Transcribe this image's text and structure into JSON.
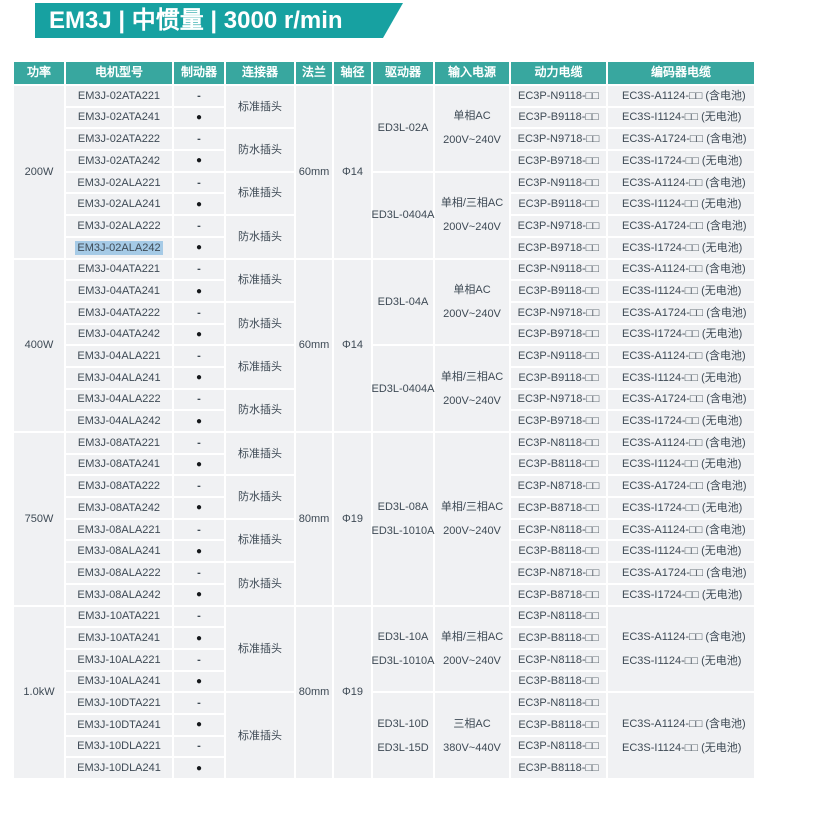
{
  "banner": {
    "title": "EM3J | 中惯量 | 3000 r/min"
  },
  "colors": {
    "banner_teal": "#17a1a1",
    "header_teal": "#38a79f",
    "cell_background": "#f0f1f3",
    "selection_highlight": "#a5cae6",
    "text": "#3e4a55"
  },
  "table": {
    "headers": [
      "功率",
      "电机型号",
      "制动器",
      "连接器",
      "法兰",
      "轴径",
      "驱动器",
      "输入电源",
      "动力电缆",
      "编码器电缆"
    ],
    "sections": [
      {
        "power": "200W",
        "flange": "60mm",
        "shaft": "Φ14",
        "connectors": [
          {
            "label": "标准插头",
            "span": 2
          },
          {
            "label": "防水插头",
            "span": 2
          },
          {
            "label": "标准插头",
            "span": 2
          },
          {
            "label": "防水插头",
            "span": 2
          }
        ],
        "drivers": [
          {
            "lines": [
              "ED3L-02A"
            ],
            "span": 4
          },
          {
            "lines": [
              "ED3L-0404A"
            ],
            "span": 4
          }
        ],
        "inputs": [
          {
            "lines": [
              "单相AC",
              "200V~240V"
            ],
            "span": 4
          },
          {
            "lines": [
              "单相/三相AC",
              "200V~240V"
            ],
            "span": 4
          }
        ],
        "rows": [
          {
            "model": "EM3J-02ATA221",
            "brake": "-",
            "power_cable": "EC3P-N9118-□□",
            "encoder_cable": "EC3S-A1124-□□ (含电池)"
          },
          {
            "model": "EM3J-02ATA241",
            "brake": "●",
            "power_cable": "EC3P-B9118-□□",
            "encoder_cable": "EC3S-I1124-□□ (无电池)"
          },
          {
            "model": "EM3J-02ATA222",
            "brake": "-",
            "power_cable": "EC3P-N9718-□□",
            "encoder_cable": "EC3S-A1724-□□ (含电池)"
          },
          {
            "model": "EM3J-02ATA242",
            "brake": "●",
            "power_cable": "EC3P-B9718-□□",
            "encoder_cable": "EC3S-I1724-□□ (无电池)"
          },
          {
            "model": "EM3J-02ALA221",
            "brake": "-",
            "power_cable": "EC3P-N9118-□□",
            "encoder_cable": "EC3S-A1124-□□ (含电池)"
          },
          {
            "model": "EM3J-02ALA241",
            "brake": "●",
            "power_cable": "EC3P-B9118-□□",
            "encoder_cable": "EC3S-I1124-□□ (无电池)"
          },
          {
            "model": "EM3J-02ALA222",
            "brake": "-",
            "power_cable": "EC3P-N9718-□□",
            "encoder_cable": "EC3S-A1724-□□ (含电池)"
          },
          {
            "model": "EM3J-02ALA242",
            "brake": "●",
            "highlight": true,
            "power_cable": "EC3P-B9718-□□",
            "encoder_cable": "EC3S-I1724-□□ (无电池)"
          }
        ]
      },
      {
        "power": "400W",
        "flange": "60mm",
        "shaft": "Φ14",
        "connectors": [
          {
            "label": "标准插头",
            "span": 2
          },
          {
            "label": "防水插头",
            "span": 2
          },
          {
            "label": "标准插头",
            "span": 2
          },
          {
            "label": "防水插头",
            "span": 2
          }
        ],
        "drivers": [
          {
            "lines": [
              "ED3L-04A"
            ],
            "span": 4
          },
          {
            "lines": [
              "ED3L-0404A"
            ],
            "span": 4
          }
        ],
        "inputs": [
          {
            "lines": [
              "单相AC",
              "200V~240V"
            ],
            "span": 4
          },
          {
            "lines": [
              "单相/三相AC",
              "200V~240V"
            ],
            "span": 4
          }
        ],
        "rows": [
          {
            "model": "EM3J-04ATA221",
            "brake": "-",
            "power_cable": "EC3P-N9118-□□",
            "encoder_cable": "EC3S-A1124-□□ (含电池)"
          },
          {
            "model": "EM3J-04ATA241",
            "brake": "●",
            "power_cable": "EC3P-B9118-□□",
            "encoder_cable": "EC3S-I1124-□□ (无电池)"
          },
          {
            "model": "EM3J-04ATA222",
            "brake": "-",
            "power_cable": "EC3P-N9718-□□",
            "encoder_cable": "EC3S-A1724-□□ (含电池)"
          },
          {
            "model": "EM3J-04ATA242",
            "brake": "●",
            "power_cable": "EC3P-B9718-□□",
            "encoder_cable": "EC3S-I1724-□□ (无电池)"
          },
          {
            "model": "EM3J-04ALA221",
            "brake": "-",
            "power_cable": "EC3P-N9118-□□",
            "encoder_cable": "EC3S-A1124-□□ (含电池)"
          },
          {
            "model": "EM3J-04ALA241",
            "brake": "●",
            "power_cable": "EC3P-B9118-□□",
            "encoder_cable": "EC3S-I1124-□□ (无电池)"
          },
          {
            "model": "EM3J-04ALA222",
            "brake": "-",
            "power_cable": "EC3P-N9718-□□",
            "encoder_cable": "EC3S-A1724-□□ (含电池)"
          },
          {
            "model": "EM3J-04ALA242",
            "brake": "●",
            "power_cable": "EC3P-B9718-□□",
            "encoder_cable": "EC3S-I1724-□□ (无电池)"
          }
        ]
      },
      {
        "power": "750W",
        "flange": "80mm",
        "shaft": "Φ19",
        "connectors": [
          {
            "label": "标准插头",
            "span": 2
          },
          {
            "label": "防水插头",
            "span": 2
          },
          {
            "label": "标准插头",
            "span": 2
          },
          {
            "label": "防水插头",
            "span": 2
          }
        ],
        "drivers": [
          {
            "lines": [
              "ED3L-08A",
              "ED3L-1010A"
            ],
            "span": 8
          }
        ],
        "inputs": [
          {
            "lines": [
              "单相/三相AC",
              "200V~240V"
            ],
            "span": 8
          }
        ],
        "rows": [
          {
            "model": "EM3J-08ATA221",
            "brake": "-",
            "power_cable": "EC3P-N8118-□□",
            "encoder_cable": "EC3S-A1124-□□ (含电池)"
          },
          {
            "model": "EM3J-08ATA241",
            "brake": "●",
            "power_cable": "EC3P-B8118-□□",
            "encoder_cable": "EC3S-I1124-□□ (无电池)"
          },
          {
            "model": "EM3J-08ATA222",
            "brake": "-",
            "power_cable": "EC3P-N8718-□□",
            "encoder_cable": "EC3S-A1724-□□ (含电池)"
          },
          {
            "model": "EM3J-08ATA242",
            "brake": "●",
            "power_cable": "EC3P-B8718-□□",
            "encoder_cable": "EC3S-I1724-□□ (无电池)"
          },
          {
            "model": "EM3J-08ALA221",
            "brake": "-",
            "power_cable": "EC3P-N8118-□□",
            "encoder_cable": "EC3S-A1124-□□ (含电池)"
          },
          {
            "model": "EM3J-08ALA241",
            "brake": "●",
            "power_cable": "EC3P-B8118-□□",
            "encoder_cable": "EC3S-I1124-□□ (无电池)"
          },
          {
            "model": "EM3J-08ALA222",
            "brake": "-",
            "power_cable": "EC3P-N8718-□□",
            "encoder_cable": "EC3S-A1724-□□ (含电池)"
          },
          {
            "model": "EM3J-08ALA242",
            "brake": "●",
            "power_cable": "EC3P-B8718-□□",
            "encoder_cable": "EC3S-I1724-□□ (无电池)"
          }
        ]
      },
      {
        "power": "1.0kW",
        "flange": "80mm",
        "shaft": "Φ19",
        "connectors": [
          {
            "label": "标准插头",
            "span": 4
          },
          {
            "label": "标准插头",
            "span": 4
          }
        ],
        "drivers": [
          {
            "lines": [
              "ED3L-10A",
              "ED3L-1010A"
            ],
            "span": 4
          },
          {
            "lines": [
              "ED3L-10D",
              "ED3L-15D"
            ],
            "span": 4
          }
        ],
        "inputs": [
          {
            "lines": [
              "单相/三相AC",
              "200V~240V"
            ],
            "span": 4
          },
          {
            "lines": [
              "三相AC",
              "380V~440V"
            ],
            "span": 4
          }
        ],
        "encoder_groups": [
          {
            "lines": [
              "EC3S-A1124-□□ (含电池)",
              "EC3S-I1124-□□ (无电池)"
            ],
            "span": 4
          },
          {
            "lines": [
              "EC3S-A1124-□□ (含电池)",
              "EC3S-I1124-□□ (无电池)"
            ],
            "span": 4
          }
        ],
        "rows": [
          {
            "model": "EM3J-10ATA221",
            "brake": "-",
            "power_cable": "EC3P-N8118-□□"
          },
          {
            "model": "EM3J-10ATA241",
            "brake": "●",
            "power_cable": "EC3P-B8118-□□"
          },
          {
            "model": "EM3J-10ALA221",
            "brake": "-",
            "power_cable": "EC3P-N8118-□□"
          },
          {
            "model": "EM3J-10ALA241",
            "brake": "●",
            "power_cable": "EC3P-B8118-□□"
          },
          {
            "model": "EM3J-10DTA221",
            "brake": "-",
            "power_cable": "EC3P-N8118-□□"
          },
          {
            "model": "EM3J-10DTA241",
            "brake": "●",
            "power_cable": "EC3P-B8118-□□"
          },
          {
            "model": "EM3J-10DLA221",
            "brake": "-",
            "power_cable": "EC3P-N8118-□□"
          },
          {
            "model": "EM3J-10DLA241",
            "brake": "●",
            "power_cable": "EC3P-B8118-□□"
          }
        ]
      }
    ]
  }
}
